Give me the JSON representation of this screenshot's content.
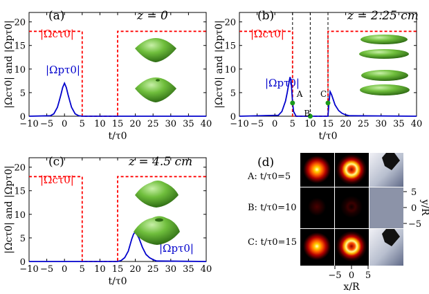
{
  "chart_data": [
    {
      "type": "line",
      "panel_label": "(a)",
      "title": "z = 0",
      "xlabel": "t/τ0",
      "ylabel": "|Ωcτ0| and |Ωpτ0|",
      "xlim": [
        -10,
        40
      ],
      "ylim": [
        0,
        22
      ],
      "xticks": [
        -10,
        -5,
        0,
        5,
        10,
        15,
        20,
        25,
        30,
        35,
        40
      ],
      "xtick_labels": [
        "−10",
        "−5",
        "0",
        "5",
        "10",
        "15",
        "20",
        "25",
        "30",
        "35",
        "40"
      ],
      "yticks": [
        0,
        5,
        10,
        15,
        20
      ],
      "ytick_labels": [
        "0",
        "5",
        "10",
        "15",
        "20"
      ],
      "series": [
        {
          "name": "|Ωcτ0|",
          "color": "#ff0000",
          "style": "dashed",
          "x": [
            -10,
            5,
            5,
            15,
            15,
            40
          ],
          "y": [
            18,
            18,
            0,
            0,
            18,
            18
          ]
        },
        {
          "name": "|Ωpτ0|",
          "color": "#0000cc",
          "style": "solid",
          "x": [
            -10,
            -4,
            -3,
            -2,
            -1.5,
            -1,
            -0.5,
            0,
            0.5,
            1,
            1.5,
            2,
            3,
            4,
            5,
            40
          ],
          "y": [
            0,
            0.1,
            0.5,
            1.9,
            3.2,
            4.6,
            6.1,
            7,
            6.1,
            4.6,
            3.2,
            1.9,
            0.5,
            0.1,
            0,
            0
          ]
        }
      ],
      "annotations": [
        {
          "text": "|Ωcτ0|",
          "color": "#ff0000"
        },
        {
          "text": "|Ωpτ0|",
          "color": "#0000cc"
        }
      ]
    },
    {
      "type": "line",
      "panel_label": "(b)",
      "title": "z = 2.25 cm",
      "xlabel": "t/τ0",
      "ylabel": "|Ωcτ0| and |Ωpτ0|",
      "xlim": [
        -10,
        40
      ],
      "ylim": [
        0,
        22
      ],
      "xticks": [
        -10,
        -5,
        0,
        5,
        10,
        15,
        20,
        25,
        30,
        35,
        40
      ],
      "xtick_labels": [
        "−10",
        "−5",
        "0",
        "5",
        "10",
        "15",
        "20",
        "25",
        "30",
        "35",
        "40"
      ],
      "yticks": [
        0,
        5,
        10,
        15,
        20
      ],
      "ytick_labels": [
        "0",
        "5",
        "10",
        "15",
        "20"
      ],
      "series": [
        {
          "name": "|Ωcτ0|",
          "color": "#ff0000",
          "style": "dashed",
          "x": [
            -10,
            5,
            5,
            15,
            15,
            40
          ],
          "y": [
            18,
            18,
            0,
            0,
            18,
            18
          ]
        },
        {
          "name": "|Ωpτ0|",
          "color": "#0000cc",
          "style": "solid",
          "x": [
            -10,
            1,
            2,
            3,
            3.5,
            4,
            4.3,
            4.6,
            5,
            5.3,
            6,
            15,
            15.3,
            15.6,
            16,
            17,
            18,
            19,
            20,
            21,
            40
          ],
          "y": [
            0,
            0.2,
            1,
            3.2,
            5,
            7.2,
            8.3,
            7.4,
            3,
            1,
            0,
            0,
            3,
            5.2,
            4.6,
            2.4,
            1.2,
            0.6,
            0.3,
            0.1,
            0
          ]
        }
      ],
      "vlines": [
        5,
        10,
        15
      ],
      "markers": [
        {
          "label": "A",
          "x": 5,
          "y": 2.8
        },
        {
          "label": "B",
          "x": 10,
          "y": 0
        },
        {
          "label": "C",
          "x": 15,
          "y": 2.8
        }
      ],
      "annotations": [
        {
          "text": "|Ωcτ0|",
          "color": "#ff0000"
        },
        {
          "text": "|Ωpτ0|",
          "color": "#0000cc"
        }
      ]
    },
    {
      "type": "line",
      "panel_label": "(c)",
      "title": "z = 4.5 cm",
      "xlabel": "t/τ0",
      "ylabel": "|Ωcτ0| and |Ωpτ0|",
      "xlim": [
        -10,
        40
      ],
      "ylim": [
        0,
        22
      ],
      "xticks": [
        -10,
        -5,
        0,
        5,
        10,
        15,
        20,
        25,
        30,
        35,
        40
      ],
      "xtick_labels": [
        "−10",
        "−5",
        "0",
        "5",
        "10",
        "15",
        "20",
        "25",
        "30",
        "35",
        "40"
      ],
      "yticks": [
        0,
        5,
        10,
        15,
        20
      ],
      "ytick_labels": [
        "0",
        "5",
        "10",
        "15",
        "20"
      ],
      "series": [
        {
          "name": "|Ωcτ0|",
          "color": "#ff0000",
          "style": "dashed",
          "x": [
            -10,
            5,
            5,
            15,
            15,
            40
          ],
          "y": [
            18,
            18,
            0,
            0,
            18,
            18
          ]
        },
        {
          "name": "|Ωpτ0|",
          "color": "#0000cc",
          "style": "solid",
          "x": [
            -10,
            15,
            16,
            17,
            18,
            19,
            19.5,
            20,
            21,
            22,
            23,
            24,
            25,
            26,
            40
          ],
          "y": [
            0,
            0,
            0.2,
            0.8,
            2.2,
            4.8,
            5.8,
            6.3,
            5,
            3,
            1.5,
            0.8,
            0.4,
            0.1,
            0
          ]
        }
      ],
      "annotations": [
        {
          "text": "|Ωcτ0|",
          "color": "#ff0000"
        },
        {
          "text": "|Ωpτ0|",
          "color": "#0000cc"
        }
      ]
    },
    {
      "type": "heatmap",
      "panel_label": "(d)",
      "xlabel": "x/R",
      "ylabel": "y/R",
      "xtick_labels": [
        "−5",
        "0",
        "5"
      ],
      "ytick_labels": [
        "5",
        "0",
        "−5"
      ],
      "rows": [
        {
          "label": "A: t/τ0=5",
          "intensity": 1.0
        },
        {
          "label": "B: t/τ0=10",
          "intensity": 0.12
        },
        {
          "label": "C: t/τ0=15",
          "intensity": 1.0
        }
      ]
    }
  ]
}
